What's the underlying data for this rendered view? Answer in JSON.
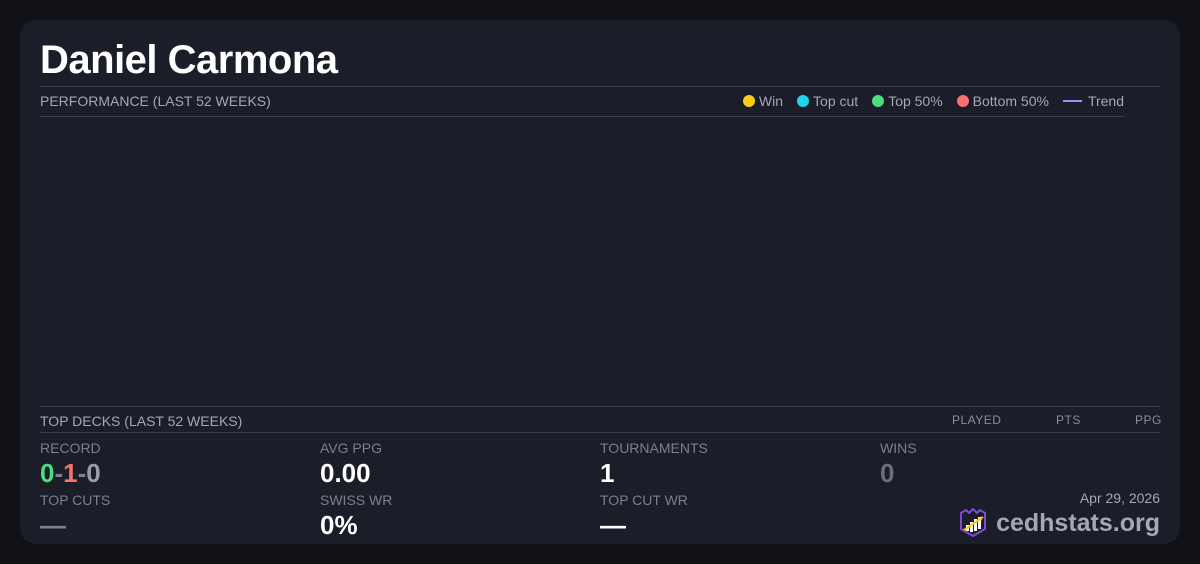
{
  "player": {
    "name": "Daniel Carmona"
  },
  "performance": {
    "title": "PERFORMANCE (LAST 52 WEEKS)",
    "legend": [
      {
        "label": "Win",
        "color": "#facc15"
      },
      {
        "label": "Top cut",
        "color": "#22d3ee"
      },
      {
        "label": "Top 50%",
        "color": "#4ade80"
      },
      {
        "label": "Bottom 50%",
        "color": "#f87171"
      },
      {
        "label": "Trend",
        "color": "#a78bfa"
      }
    ]
  },
  "top_decks": {
    "title": "TOP DECKS (LAST 52 WEEKS)",
    "columns": [
      "PLAYED",
      "PTS",
      "PPG"
    ]
  },
  "stats": {
    "record": {
      "label": "RECORD",
      "wins": "0",
      "losses": "1",
      "draws": "0",
      "sep": "-"
    },
    "avg_ppg": {
      "label": "AVG PPG",
      "value": "0.00"
    },
    "tournaments": {
      "label": "TOURNAMENTS",
      "value": "1"
    },
    "wins": {
      "label": "WINS",
      "value": "0"
    },
    "top_cuts": {
      "label": "TOP CUTS",
      "value": "—"
    },
    "swiss_wr": {
      "label": "SWISS WR",
      "value": "0%"
    },
    "top_cut_wr": {
      "label": "TOP CUT WR",
      "value": "—"
    }
  },
  "footer": {
    "date": "Apr 29, 2026",
    "brand": "cedhstats.org"
  }
}
